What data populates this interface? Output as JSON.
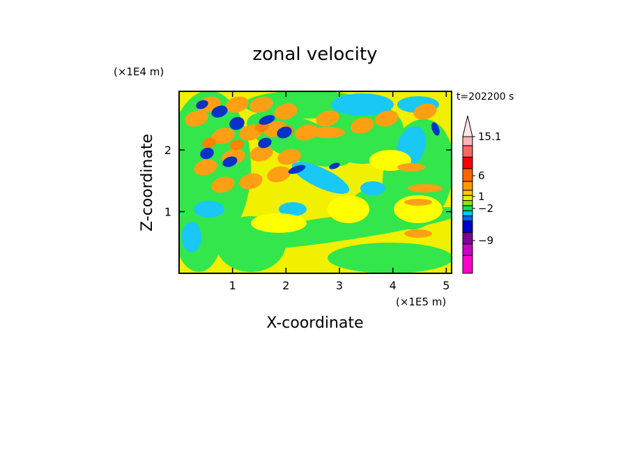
{
  "chart_data": {
    "type": "heatmap",
    "title": "zonal velocity",
    "xlabel": "X-coordinate",
    "ylabel": "Z-coordinate",
    "x_unit": "(×1E5 m)",
    "y_unit": "(×1E4 m)",
    "time_label": "t=202200 s",
    "xlim": [
      0,
      5.1
    ],
    "ylim": [
      0,
      2.95
    ],
    "xticks": [
      "1",
      "2",
      "3",
      "4",
      "5"
    ],
    "yticks": [
      "1",
      "2"
    ],
    "colorbar": {
      "labels": [
        "15.1",
        "6",
        "1",
        "−2",
        "−9"
      ],
      "levels": [
        {
          "color": "#ff00c8"
        },
        {
          "color": "#c800c8"
        },
        {
          "color": "#7f0096"
        },
        {
          "color": "#0000c8"
        },
        {
          "color": "#0064ff"
        },
        {
          "color": "#00c8ff"
        },
        {
          "color": "#00e64b"
        },
        {
          "color": "#8ce600"
        },
        {
          "color": "#e6f000"
        },
        {
          "color": "#ffc800"
        },
        {
          "color": "#ff9600"
        },
        {
          "color": "#ff6400"
        },
        {
          "color": "#ff0000"
        },
        {
          "color": "#ff6464"
        },
        {
          "color": "#ffb4b4"
        }
      ],
      "extend_top_color": "#ffe6e6"
    },
    "field_colors": {
      "background": "#f0f000",
      "green": "#33e64b",
      "cyan": "#19c8f5",
      "orange": "#ffa014",
      "dark_orange": "#ff8200",
      "deep_blue": "#0a32c8",
      "light_yellow": "#ffff00"
    }
  }
}
